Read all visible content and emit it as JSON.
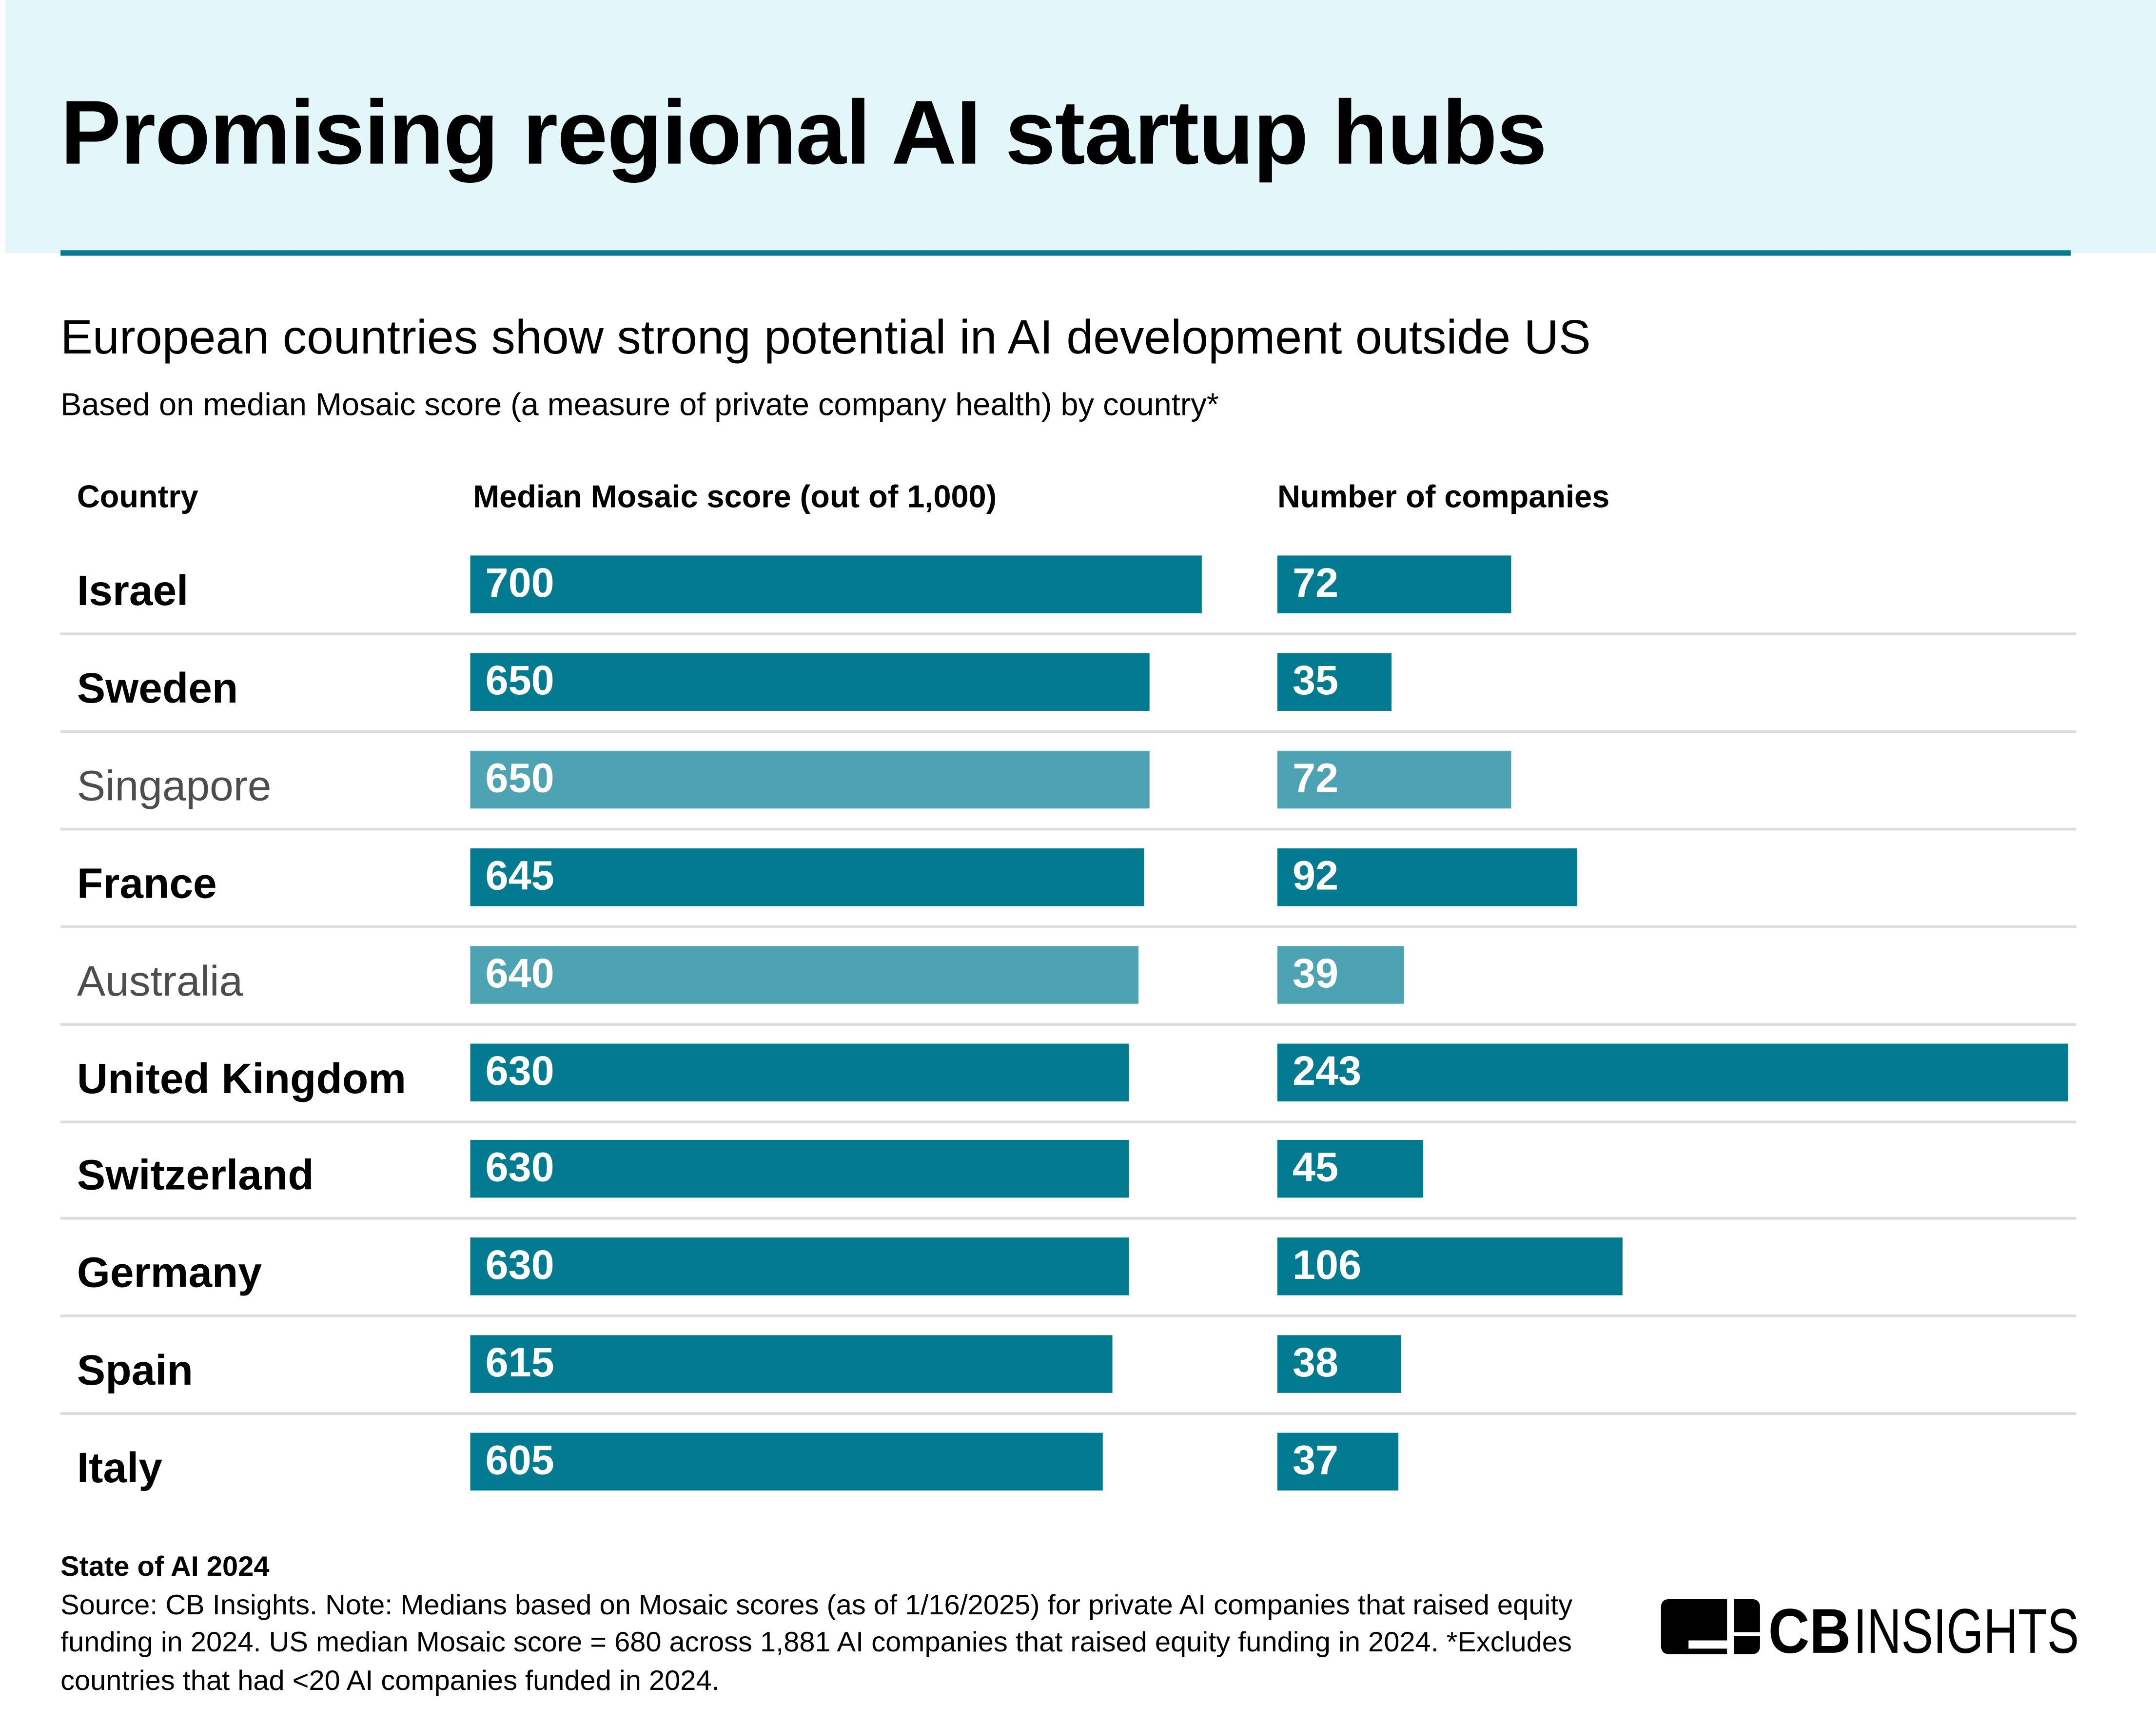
{
  "title": "Promising regional AI startup hubs",
  "subtitle": "European countries show strong potential in AI development outside US",
  "description": "Based on median Mosaic score (a measure of private company health) by country*",
  "colors": {
    "europe": "#027b90",
    "other": "#4da3b2",
    "header_bg": "#e3f6fa",
    "rule": "#0a7a90"
  },
  "chart_data": {
    "type": "table",
    "columns": [
      "Country",
      "Median Mosaic score (out of 1,000)",
      "Number of companies"
    ],
    "score_range": [
      0,
      1000
    ],
    "rows": [
      {
        "country": "Israel",
        "score": 700,
        "companies": 72,
        "highlight": "europe"
      },
      {
        "country": "Sweden",
        "score": 650,
        "companies": 35,
        "highlight": "europe"
      },
      {
        "country": "Singapore",
        "score": 650,
        "companies": 72,
        "highlight": "other"
      },
      {
        "country": "France",
        "score": 645,
        "companies": 92,
        "highlight": "europe"
      },
      {
        "country": "Australia",
        "score": 640,
        "companies": 39,
        "highlight": "other"
      },
      {
        "country": "United Kingdom",
        "score": 630,
        "companies": 243,
        "highlight": "europe"
      },
      {
        "country": "Switzerland",
        "score": 630,
        "companies": 45,
        "highlight": "europe"
      },
      {
        "country": "Germany",
        "score": 630,
        "companies": 106,
        "highlight": "europe"
      },
      {
        "country": "Spain",
        "score": 615,
        "companies": 38,
        "highlight": "europe"
      },
      {
        "country": "Italy",
        "score": 605,
        "companies": 37,
        "highlight": "europe"
      }
    ]
  },
  "footer": {
    "report": "State of AI 2024",
    "source": "Source: CB Insights. Note: Medians based on Mosaic scores (as of 1/16/2025) for private AI companies that raised equity funding in 2024. US median Mosaic score = 680 across 1,881 AI companies that raised equity funding in 2024. *Excludes countries that had <20 AI companies funded in 2024."
  },
  "logo": "CBINSIGHTS"
}
